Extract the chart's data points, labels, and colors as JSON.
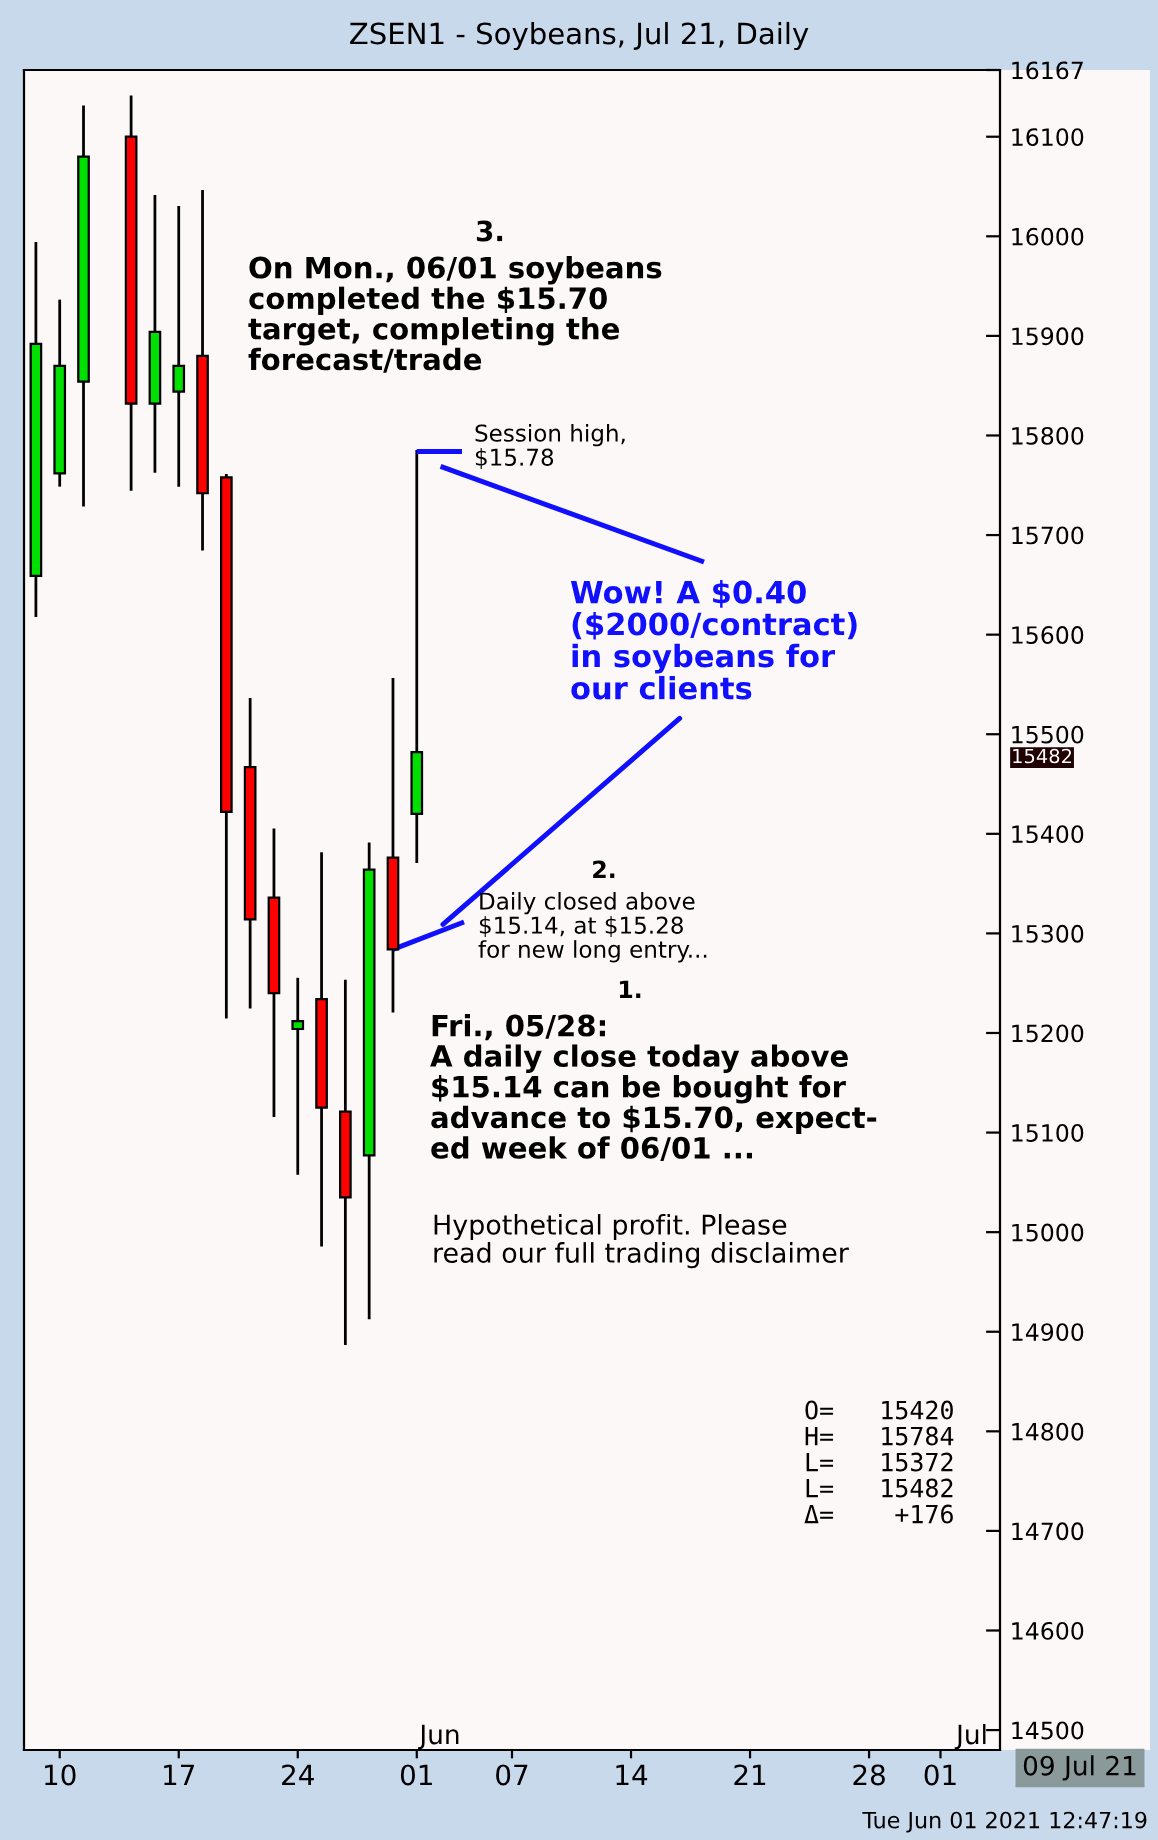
{
  "chart_data": {
    "type": "candlestick",
    "title": "ZSEN1 - Soybeans, Jul 21, Daily",
    "categories": [
      null,
      "10",
      null,
      null,
      null,
      null,
      "17",
      null,
      null,
      null,
      null,
      "24",
      null,
      null,
      null,
      null,
      "01",
      null,
      null,
      null,
      "07",
      null,
      null,
      null,
      null,
      "14",
      null,
      null,
      null,
      null,
      "21",
      null,
      null,
      null,
      null,
      "28",
      null,
      null,
      "01",
      null,
      null
    ],
    "ohlc": [
      [
        15659,
        15993,
        15619,
        15892
      ],
      [
        15762,
        15935,
        15750,
        15870
      ],
      [
        15854,
        16130,
        15730,
        16080
      ],
      null,
      [
        16100,
        16140,
        15746,
        15832
      ],
      [
        15832,
        16040,
        15764,
        15904
      ],
      [
        15844,
        16029,
        15750,
        15870
      ],
      [
        15880,
        16045,
        15686,
        15742
      ],
      [
        15758,
        15760,
        15216,
        15422
      ],
      [
        15467,
        15535,
        15226,
        15314
      ],
      [
        15336,
        15404,
        15117,
        15240
      ],
      [
        15204,
        15254,
        15059,
        15212
      ],
      [
        15234,
        15380,
        14987,
        15125
      ],
      [
        15121,
        15252,
        14888,
        15035
      ],
      [
        15077,
        15390,
        14914,
        15364
      ],
      [
        15376,
        15555,
        15222,
        15284
      ],
      [
        15420,
        15784,
        15372,
        15482
      ],
      null,
      null,
      null,
      null,
      null,
      null,
      null,
      null,
      null,
      null,
      null,
      null,
      null,
      null,
      null,
      null,
      null,
      null,
      null,
      null,
      null,
      null,
      null,
      null
    ],
    "colors": [
      "#00e000",
      "#00e000",
      "#00e000",
      null,
      "#ff0000",
      "#00e000",
      "#00e000",
      "#ff0000",
      "#ff0000",
      "#ff0000",
      "#ff0000",
      "#00e000",
      "#ff0000",
      "#ff0000",
      "#00e000",
      "#ff0000",
      "#00e000",
      null,
      null,
      null,
      null,
      null,
      null,
      null,
      null,
      null,
      null,
      null,
      null,
      null,
      null,
      null,
      null,
      null,
      null,
      null,
      null,
      null,
      null,
      null,
      null
    ],
    "ylim": [
      14480,
      16167
    ],
    "yticks": [
      14500,
      14600,
      14700,
      14800,
      14900,
      15000,
      15100,
      15200,
      15300,
      15400,
      15500,
      15600,
      15700,
      15800,
      15900,
      16000,
      16100,
      16167
    ],
    "grid": false,
    "annotations": [
      "O=   15420",
      "H=   15784",
      "L=   15372",
      "L=   15482",
      "Δ=    +176",
      "3.",
      "On Mon., 06/01 soybeans\ncompleted the $15.70\ntarget, completing the\nforecast/trade",
      "Session high,\n$15.78",
      "Wow! A $0.40\n($2000/contract)\nin soybeans for\nour clients",
      "2.",
      "Daily closed above\n$15.14, at $15.28\nfor new long entry...",
      "1.",
      "Fri., 05/28:\nA daily close today above\n$15.14 can be bought for\nadvance to $15.70, expect-\ned week of 06/01 ...",
      "Hypothetical profit. Please\nread our full trading disclaimer",
      "Jun",
      "Jul",
      "09 Jul 21",
      "Tue Jun 01 2021 12:47:19",
      "15482"
    ]
  }
}
